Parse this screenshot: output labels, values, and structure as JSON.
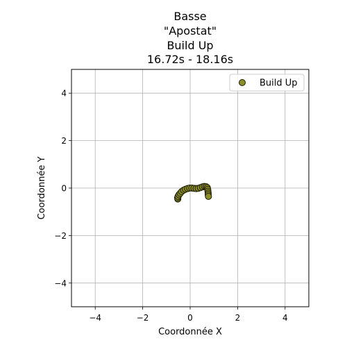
{
  "chart_data": {
    "type": "scatter",
    "title_lines": [
      "Basse",
      "\"Apostat\"",
      "Build Up",
      "16.72s - 18.16s"
    ],
    "xlabel": "Coordonnée X",
    "ylabel": "Coordonnée Y",
    "xlim": [
      -5,
      5
    ],
    "ylim": [
      -5,
      5
    ],
    "xticks": [
      -4,
      -2,
      0,
      2,
      4
    ],
    "yticks": [
      -4,
      -2,
      0,
      2,
      4
    ],
    "xtick_labels": [
      "−4",
      "−2",
      "0",
      "2",
      "4"
    ],
    "ytick_labels": [
      "−4",
      "−2",
      "0",
      "2",
      "4"
    ],
    "grid": true,
    "legend_position": "top-right",
    "series": [
      {
        "name": "Build Up",
        "marker_color": "#8c8c2a",
        "edge_color": "#1e1e05",
        "line_color": "#b5b54a",
        "points": [
          {
            "x": -0.52,
            "y": -0.46
          },
          {
            "x": -0.53,
            "y": -0.41
          },
          {
            "x": -0.51,
            "y": -0.35
          },
          {
            "x": -0.47,
            "y": -0.28
          },
          {
            "x": -0.42,
            "y": -0.22
          },
          {
            "x": -0.36,
            "y": -0.15
          },
          {
            "x": -0.28,
            "y": -0.09
          },
          {
            "x": -0.2,
            "y": -0.05
          },
          {
            "x": -0.11,
            "y": -0.02
          },
          {
            "x": -0.02,
            "y": 0.0
          },
          {
            "x": 0.07,
            "y": 0.0
          },
          {
            "x": 0.16,
            "y": -0.01
          },
          {
            "x": 0.25,
            "y": -0.02
          },
          {
            "x": 0.34,
            "y": -0.01
          },
          {
            "x": 0.43,
            "y": 0.02
          },
          {
            "x": 0.52,
            "y": 0.05
          },
          {
            "x": 0.6,
            "y": 0.07
          },
          {
            "x": 0.67,
            "y": 0.06
          },
          {
            "x": 0.72,
            "y": 0.02
          },
          {
            "x": 0.74,
            "y": -0.05
          },
          {
            "x": 0.75,
            "y": -0.13
          },
          {
            "x": 0.76,
            "y": -0.21
          },
          {
            "x": 0.76,
            "y": -0.28
          },
          {
            "x": 0.77,
            "y": -0.35
          }
        ]
      }
    ]
  }
}
